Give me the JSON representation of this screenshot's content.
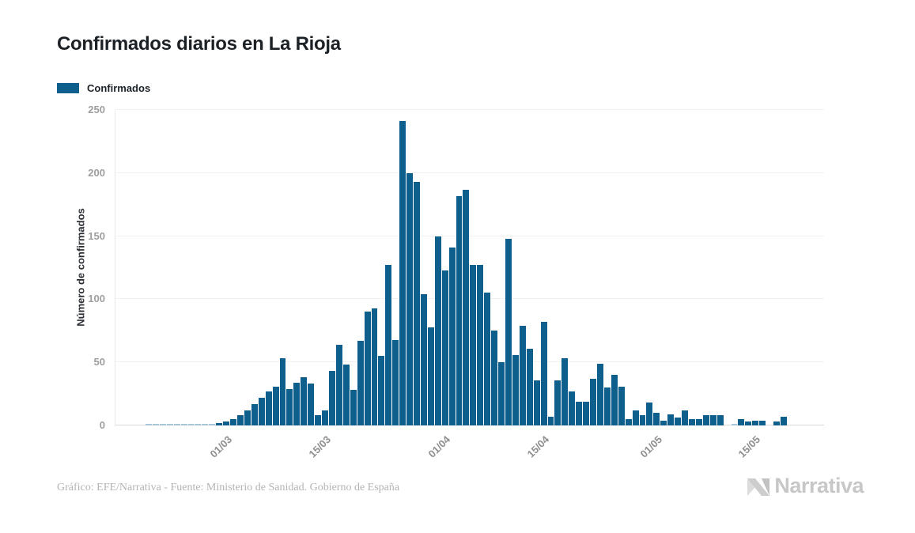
{
  "header": {
    "title": "Confirmados diarios en La Rioja"
  },
  "legend": {
    "label": "Confirmados",
    "swatch_color": "#0e5f8c"
  },
  "chart_data": {
    "type": "bar",
    "title": "Confirmados diarios en La Rioja",
    "series_name": "Confirmados",
    "xlabel": "",
    "ylabel": "Número de confirmados",
    "ylim": [
      0,
      250
    ],
    "y_ticks": [
      0,
      50,
      100,
      150,
      200,
      250
    ],
    "grid": "horizontal",
    "legend_position": "top-left",
    "bar_color": "#0e5f8c",
    "near_zero_bar_color": "#a9c6d9",
    "x_tick_labels": [
      {
        "label": "01/03",
        "index": 10
      },
      {
        "label": "15/03",
        "index": 24
      },
      {
        "label": "01/04",
        "index": 41
      },
      {
        "label": "15/04",
        "index": 55
      },
      {
        "label": "01/05",
        "index": 71
      },
      {
        "label": "15/05",
        "index": 85
      }
    ],
    "dates": [
      "20/02",
      "21/02",
      "22/02",
      "23/02",
      "24/02",
      "25/02",
      "26/02",
      "27/02",
      "28/02",
      "29/02",
      "01/03",
      "02/03",
      "03/03",
      "04/03",
      "05/03",
      "06/03",
      "07/03",
      "08/03",
      "09/03",
      "10/03",
      "11/03",
      "12/03",
      "13/03",
      "14/03",
      "15/03",
      "16/03",
      "17/03",
      "18/03",
      "19/03",
      "20/03",
      "21/03",
      "22/03",
      "23/03",
      "24/03",
      "25/03",
      "26/03",
      "27/03",
      "28/03",
      "29/03",
      "30/03",
      "31/03",
      "01/04",
      "02/04",
      "03/04",
      "04/04",
      "05/04",
      "06/04",
      "07/04",
      "08/04",
      "09/04",
      "10/04",
      "11/04",
      "12/04",
      "13/04",
      "14/04",
      "15/04",
      "16/04",
      "17/04",
      "18/04",
      "19/04",
      "20/04",
      "21/04",
      "22/04",
      "23/04",
      "24/04",
      "25/04",
      "26/04",
      "27/04",
      "28/04",
      "29/04",
      "30/04",
      "01/05",
      "02/05",
      "03/05",
      "04/05",
      "05/05",
      "06/05",
      "07/05",
      "08/05",
      "09/05",
      "10/05",
      "11/05",
      "12/05",
      "13/05",
      "14/05",
      "15/05",
      "16/05",
      "17/05",
      "18/05",
      "19/05",
      "20/05"
    ],
    "values": [
      1,
      1,
      1,
      1,
      1,
      1,
      1,
      1,
      1,
      1,
      2,
      3,
      5,
      8,
      12,
      17,
      22,
      27,
      31,
      53,
      29,
      34,
      38,
      33,
      8,
      12,
      43,
      64,
      48,
      28,
      67,
      90,
      93,
      55,
      127,
      68,
      241,
      200,
      193,
      104,
      78,
      150,
      123,
      141,
      182,
      187,
      127,
      127,
      105,
      75,
      50,
      148,
      56,
      79,
      61,
      36,
      82,
      7,
      36,
      53,
      27,
      19,
      19,
      37,
      49,
      30,
      40,
      31,
      5,
      12,
      8,
      18,
      10,
      4,
      9,
      6,
      12,
      5,
      5,
      8,
      8,
      8,
      0,
      1,
      5,
      3,
      4,
      4,
      0,
      3,
      7
    ]
  },
  "footer": {
    "credit": "Gráfico: EFE/Narrativa - Fuente: Ministerio de Sanidad. Gobierno de España",
    "logo_text": "Narrativa"
  }
}
